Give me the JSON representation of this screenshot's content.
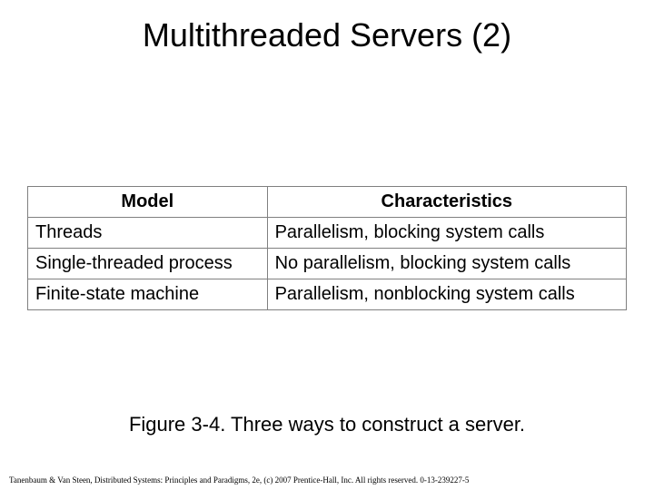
{
  "title": "Multithreaded Servers (2)",
  "table": {
    "headers": {
      "model": "Model",
      "characteristics": "Characteristics"
    },
    "rows": [
      {
        "model": "Threads",
        "characteristics": "Parallelism, blocking system calls"
      },
      {
        "model": "Single-threaded process",
        "characteristics": "No parallelism, blocking system calls"
      },
      {
        "model": "Finite-state machine",
        "characteristics": "Parallelism, nonblocking system calls"
      }
    ],
    "border_color": "#808080",
    "cell_fontsize": 20,
    "header_fontweight": "bold"
  },
  "caption": "Figure 3-4. Three ways to construct a server.",
  "footer": "Tanenbaum & Van Steen, Distributed Systems: Principles and Paradigms, 2e, (c) 2007 Prentice-Hall, Inc. All rights reserved. 0-13-239227-5",
  "colors": {
    "background": "#ffffff",
    "text": "#000000",
    "border": "#808080"
  }
}
